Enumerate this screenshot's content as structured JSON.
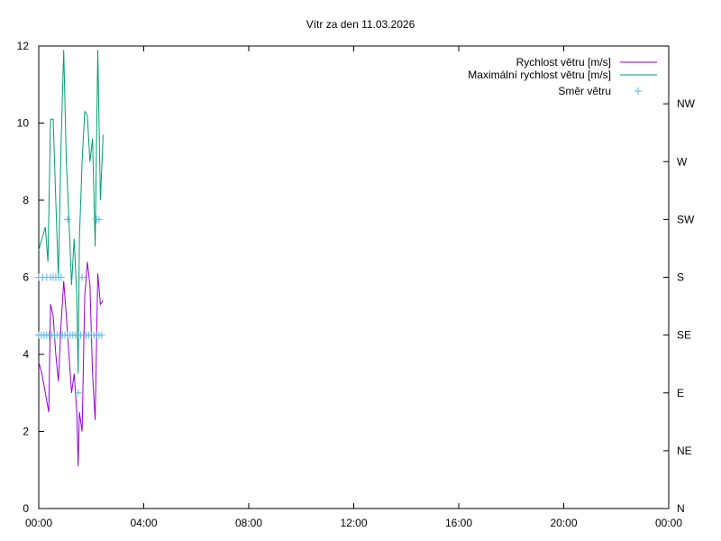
{
  "chart_data": {
    "type": "line",
    "title": "Vítr za den 11.03.2026",
    "xlabel": "",
    "ylabel": "",
    "x_ticks": [
      "00:00",
      "04:00",
      "08:00",
      "12:00",
      "16:00",
      "20:00",
      "00:00"
    ],
    "x_range_hours": [
      0,
      24
    ],
    "y_range": [
      0,
      12
    ],
    "y_ticks": [
      "0",
      "2",
      "4",
      "6",
      "8",
      "10",
      "12"
    ],
    "y2_ticks": [
      "N",
      "NE",
      "E",
      "SE",
      "S",
      "SW",
      "W",
      "NW"
    ],
    "legend_position": "top-right",
    "grid": false,
    "colors": {
      "speed": "#9400d3",
      "max_speed": "#009e73",
      "direction": "#56b4e9",
      "axis": "#000000"
    },
    "series": [
      {
        "name": "Rychlost větru [m/s]",
        "style": "line",
        "x": [
          0.0,
          0.12,
          0.25,
          0.38,
          0.45,
          0.55,
          0.65,
          0.75,
          0.85,
          0.95,
          1.05,
          1.15,
          1.25,
          1.35,
          1.45,
          1.5,
          1.55,
          1.65,
          1.75,
          1.85,
          1.95,
          2.05,
          2.15,
          2.25,
          2.35,
          2.45
        ],
        "y": [
          3.8,
          3.5,
          3.0,
          2.5,
          5.3,
          5.0,
          4.0,
          3.3,
          4.8,
          5.9,
          5.0,
          4.0,
          3.0,
          3.5,
          2.5,
          1.1,
          2.5,
          2.0,
          5.5,
          6.4,
          5.8,
          3.5,
          2.3,
          6.1,
          5.3,
          5.4
        ]
      },
      {
        "name": "Maximální rychlost větru [m/s]",
        "style": "line",
        "x": [
          0.0,
          0.12,
          0.25,
          0.35,
          0.45,
          0.55,
          0.65,
          0.75,
          0.85,
          0.95,
          1.05,
          1.15,
          1.25,
          1.35,
          1.45,
          1.5,
          1.55,
          1.65,
          1.75,
          1.85,
          1.95,
          2.05,
          2.15,
          2.25,
          2.35,
          2.45
        ],
        "y": [
          6.7,
          7.0,
          7.3,
          6.4,
          10.1,
          10.1,
          8.0,
          6.0,
          9.5,
          11.9,
          9.0,
          7.5,
          5.8,
          7.0,
          5.5,
          3.5,
          7.0,
          9.0,
          10.3,
          10.2,
          9.0,
          9.6,
          6.8,
          11.9,
          8.0,
          9.7
        ]
      },
      {
        "name": "Směr větru",
        "style": "points",
        "x": [
          0.0,
          0.1,
          0.2,
          0.3,
          0.4,
          0.5,
          0.6,
          0.7,
          0.8,
          0.9,
          1.0,
          1.1,
          1.2,
          1.3,
          1.4,
          1.5,
          1.6,
          1.7,
          1.8,
          1.9,
          2.0,
          2.1,
          2.2,
          2.3,
          2.4,
          0.0,
          0.15,
          0.3,
          0.45,
          0.55,
          0.65,
          0.75,
          0.85,
          1.1,
          1.5,
          1.65,
          2.2,
          2.3
        ],
        "y": [
          "SE",
          "SE",
          "SE",
          "SE",
          "SE",
          "SE",
          "SE",
          "SE",
          "SE",
          "SE",
          "SE",
          "SE",
          "SE",
          "SE",
          "SE",
          "SE",
          "SE",
          "SE",
          "SE",
          "SE",
          "SE",
          "SE",
          "SE",
          "SE",
          "SE",
          "S",
          "S",
          "S",
          "S",
          "S",
          "S",
          "S",
          "S",
          "SW",
          "E",
          "S",
          "SW",
          "SW"
        ]
      }
    ]
  }
}
